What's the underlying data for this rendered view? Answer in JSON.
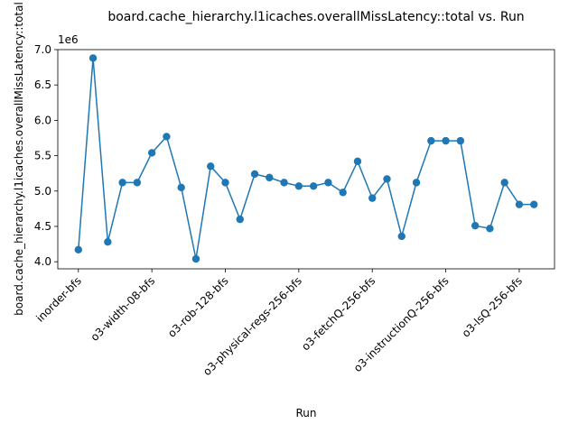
{
  "chart_data": {
    "type": "line",
    "title": "board.cache_hierarchy.l1icaches.overallMissLatency::total vs. Run",
    "xlabel": "Run",
    "ylabel": "board.cache_hierarchy.l1icaches.overallMissLatency::total",
    "y_scale_label": "1e6",
    "ylim": [
      3.9,
      7.0
    ],
    "y_ticks": [
      4.0,
      4.5,
      5.0,
      5.5,
      6.0,
      6.5,
      7.0
    ],
    "y_tick_labels": [
      "4.0",
      "4.5",
      "5.0",
      "5.5",
      "6.0",
      "6.5",
      "7.0"
    ],
    "x_ticks": [
      0,
      5,
      10,
      15,
      20,
      25,
      30
    ],
    "x_tick_labels": [
      "inorder-bfs",
      "o3-width-08-bfs",
      "o3-rob-128-bfs",
      "o3-physical-regs-256-bfs",
      "o3-fetchQ-256-bfs",
      "o3-instructionQ-256-bfs",
      "o3-lsQ-256-bfs"
    ],
    "series": [
      {
        "x": [
          0,
          1,
          2,
          3,
          4,
          5,
          6,
          7,
          8,
          9,
          10,
          11,
          12,
          13,
          14,
          15,
          16,
          17,
          18,
          19,
          20,
          21,
          22,
          23,
          24,
          25,
          26,
          27,
          28,
          29,
          30,
          31
        ],
        "values": [
          4.17,
          6.88,
          4.28,
          5.12,
          5.12,
          5.54,
          5.77,
          5.05,
          4.04,
          5.35,
          5.12,
          4.6,
          5.24,
          5.19,
          5.12,
          5.07,
          5.07,
          5.12,
          4.98,
          5.42,
          4.9,
          5.17,
          4.36,
          5.12,
          5.71,
          5.71,
          5.71,
          4.51,
          4.47,
          5.12,
          4.81,
          4.81
        ],
        "color": "#1f77b4"
      }
    ],
    "grid": false,
    "legend": "none"
  }
}
